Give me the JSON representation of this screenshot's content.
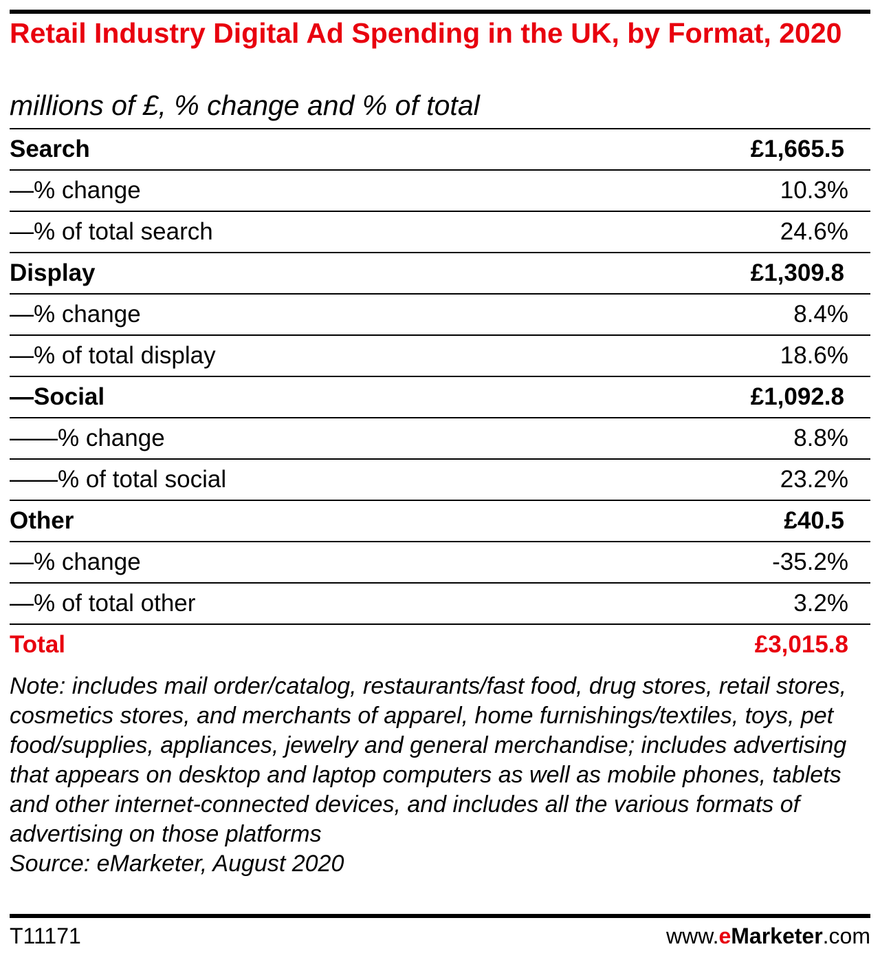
{
  "chart_data": {
    "type": "table",
    "title": "Retail Industry Digital Ad Spending in the UK, by Format, 2020",
    "subtitle": "millions of £, % change and % of total",
    "rows": [
      {
        "label": "Search",
        "value": "£1,665.5",
        "kind": "group"
      },
      {
        "label": "—% change",
        "value": "10.3%",
        "kind": "sub"
      },
      {
        "label": "—% of total search",
        "value": "24.6%",
        "kind": "sub"
      },
      {
        "label": "Display",
        "value": "£1,309.8",
        "kind": "group"
      },
      {
        "label": "—% change",
        "value": "8.4%",
        "kind": "sub"
      },
      {
        "label": "—% of total display",
        "value": "18.6%",
        "kind": "sub"
      },
      {
        "label": "—Social",
        "value": "£1,092.8",
        "kind": "group"
      },
      {
        "label": "——% change",
        "value": "8.8%",
        "kind": "sub"
      },
      {
        "label": "——% of total social",
        "value": "23.2%",
        "kind": "sub"
      },
      {
        "label": "Other",
        "value": "£40.5",
        "kind": "group"
      },
      {
        "label": "—% change",
        "value": "-35.2%",
        "kind": "sub"
      },
      {
        "label": "—% of total other",
        "value": "3.2%",
        "kind": "sub"
      },
      {
        "label": "Total",
        "value": "£3,015.8",
        "kind": "total"
      }
    ],
    "note": "Note: includes mail order/catalog, restaurants/fast food, drug stores, retail stores, cosmetics stores, and merchants of apparel, home furnishings/textiles, toys, pet food/supplies, appliances, jewelry and general merchandise; includes advertising that appears on desktop and laptop computers as well as mobile phones, tablets and other internet-connected devices, and includes all the various formats of advertising on those platforms",
    "source": "Source: eMarketer, August 2020"
  },
  "footer": {
    "id": "T11171",
    "brand_prefix": "www.",
    "brand_e": "e",
    "brand_name": "Marketer",
    "brand_suffix": ".com"
  },
  "colors": {
    "accent": "#e8000e",
    "text": "#000000"
  }
}
